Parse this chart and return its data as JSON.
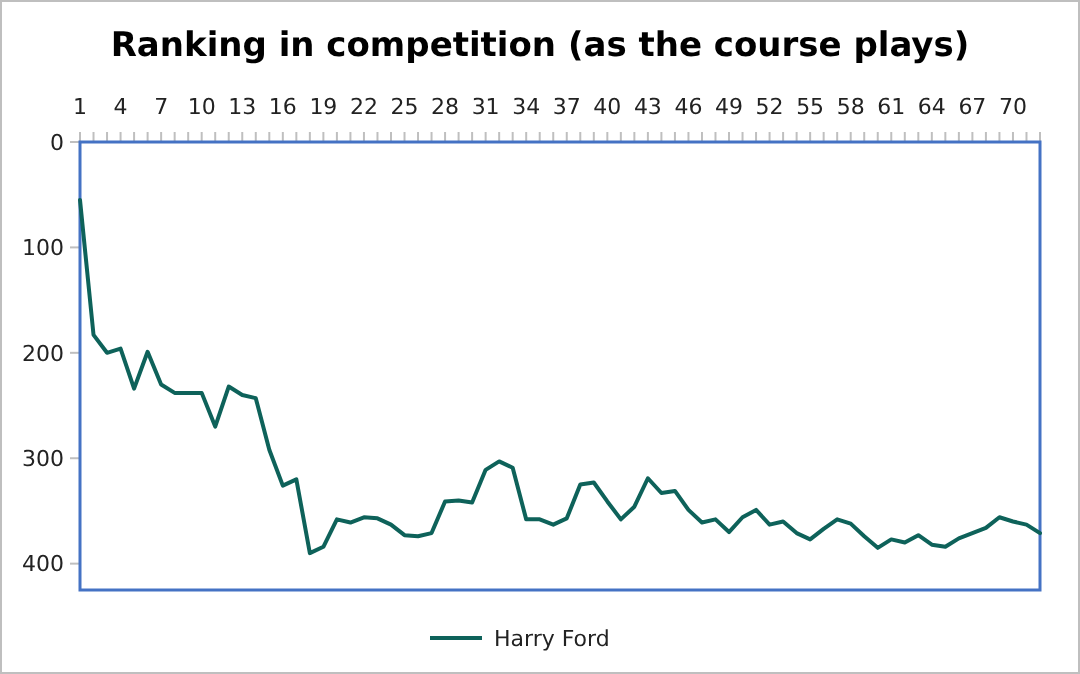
{
  "chart_data": {
    "type": "line",
    "title": "Ranking in competition (as the course plays)",
    "categories": [
      "1",
      null,
      null,
      "4",
      null,
      null,
      "7",
      null,
      null,
      "10",
      null,
      null,
      "13",
      null,
      null,
      "16",
      null,
      null,
      "19",
      null,
      null,
      "22",
      null,
      null,
      "25",
      null,
      null,
      "28",
      null,
      null,
      "31",
      null,
      null,
      "34",
      null,
      null,
      "37",
      null,
      null,
      "40",
      null,
      null,
      "43",
      null,
      null,
      "46",
      null,
      null,
      "49",
      null,
      null,
      "52",
      null,
      null,
      "55",
      null,
      null,
      "58",
      null,
      null,
      "61",
      null,
      null,
      "64",
      null,
      null,
      "67",
      null,
      null,
      "70",
      null,
      null
    ],
    "series": [
      {
        "name": "Harry Ford",
        "color": "#0e625a",
        "values": [
          55,
          183,
          200,
          196,
          234,
          199,
          230,
          238,
          238,
          238,
          270,
          232,
          240,
          243,
          292,
          326,
          320,
          390,
          384,
          358,
          361,
          356,
          357,
          363,
          373,
          374,
          371,
          341,
          340,
          342,
          311,
          303,
          309,
          358,
          358,
          363,
          357,
          325,
          323,
          341,
          358,
          346,
          319,
          333,
          331,
          349,
          361,
          358,
          370,
          356,
          349,
          363,
          360,
          371,
          377,
          367,
          358,
          362,
          374,
          385,
          377,
          380,
          373,
          382,
          384,
          376,
          371,
          366,
          356,
          360,
          363,
          371
        ]
      }
    ],
    "ylim": [
      425,
      0
    ],
    "yticks": [
      0,
      100,
      200,
      300,
      400
    ],
    "grid": false,
    "legend": "bottom",
    "marker": "none",
    "line_style": "solid"
  }
}
